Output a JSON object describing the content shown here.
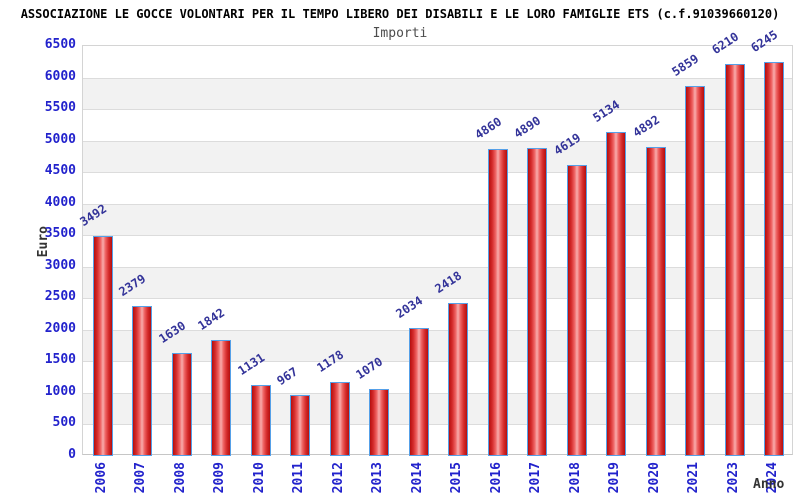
{
  "header": {
    "title": "ASSOCIAZIONE LE GOCCE VOLONTARI PER IL TEMPO LIBERO DEI DISABILI E LE LORO FAMIGLIE ETS (c.f.91039660120)",
    "subtitle": "Importi"
  },
  "chart_data": {
    "type": "bar",
    "title": "ASSOCIAZIONE LE GOCCE VOLONTARI PER IL TEMPO LIBERO DEI DISABILI E LE LORO FAMIGLIE ETS (c.f.91039660120)",
    "subtitle": "Importi",
    "xlabel": "Anno",
    "ylabel": "Euro",
    "categories": [
      "2006",
      "2007",
      "2008",
      "2009",
      "2010",
      "2011",
      "2012",
      "2013",
      "2014",
      "2015",
      "2016",
      "2017",
      "2018",
      "2019",
      "2020",
      "2021",
      "2023",
      "2024"
    ],
    "values": [
      3492,
      2379,
      1630,
      1842,
      1131,
      967,
      1178,
      1070,
      2034,
      2418,
      4860,
      4890,
      4619,
      5134,
      4892,
      5859,
      6210,
      6245
    ],
    "ylim": [
      0,
      6500
    ],
    "ytick_step": 500,
    "grid": "horizontal gridlines with alternating gray bands",
    "legend": "none",
    "colors": {
      "bar_fill_dark": "#b50f0f",
      "bar_fill_light": "#f8acac",
      "bar_border": "#55a0e8",
      "value_label": "#333399",
      "tick_label": "#2222cc",
      "axis_title": "#333333",
      "band": "#f2f2f2",
      "gridline": "#dcdcdc",
      "title": "#000000",
      "subtitle": "#4d4d4d"
    }
  }
}
